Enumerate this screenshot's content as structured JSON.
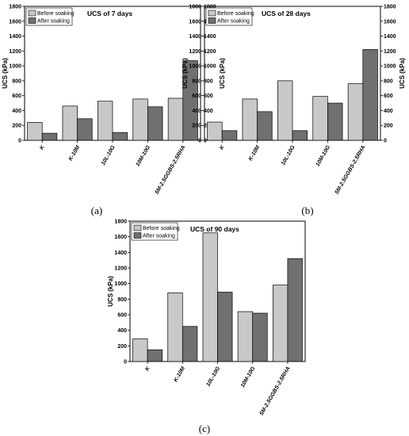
{
  "chart_data": [
    {
      "type": "bar",
      "panel_label": "(a)",
      "title": "UCS of 7 days",
      "ylabel": "UCS (kPa)",
      "ylim": [
        0,
        1800
      ],
      "yticks": [
        0,
        200,
        400,
        600,
        800,
        1000,
        1200,
        1400,
        1600,
        1800
      ],
      "secondary_y_axis": true,
      "legend_position": "top-left",
      "categories": [
        "K",
        "K-10M",
        "10L-10G",
        "10M-10G",
        "5M-2.5GGBS-2.5RHA"
      ],
      "series": [
        {
          "name": "Before soaking",
          "color": "#c8c8c8",
          "values": [
            240,
            460,
            525,
            555,
            565
          ]
        },
        {
          "name": "After soaking",
          "color": "#707070",
          "values": [
            95,
            290,
            105,
            450,
            1070
          ]
        }
      ]
    },
    {
      "type": "bar",
      "panel_label": "(b)",
      "title": "UCS of 28 days",
      "ylabel": "UCS (kPa)",
      "ylim": [
        0,
        1800
      ],
      "yticks": [
        0,
        200,
        400,
        600,
        800,
        1000,
        1200,
        1400,
        1600,
        1800
      ],
      "secondary_y_axis": true,
      "legend_position": "top-left",
      "categories": [
        "K",
        "K-10M",
        "10L-10G",
        "10M-10G",
        "5M-2.5GGBS-2.5RHA"
      ],
      "series": [
        {
          "name": "Before soaking",
          "color": "#c8c8c8",
          "values": [
            245,
            555,
            800,
            590,
            760
          ]
        },
        {
          "name": "After soaking",
          "color": "#707070",
          "values": [
            130,
            385,
            130,
            500,
            1220
          ]
        }
      ]
    },
    {
      "type": "bar",
      "panel_label": "(c)",
      "title": "UCS of 90 days",
      "ylabel": "UCS (kPa)",
      "ylim": [
        0,
        1800
      ],
      "yticks": [
        0,
        200,
        400,
        600,
        800,
        1000,
        1200,
        1400,
        1600,
        1800
      ],
      "secondary_y_axis": false,
      "legend_position": "top-left",
      "categories": [
        "K",
        "K-10M",
        "10L-10G",
        "10M-10G",
        "5M-2.5GGBS-2.5RHA"
      ],
      "series": [
        {
          "name": "Before soaking",
          "color": "#c8c8c8",
          "values": [
            290,
            880,
            1650,
            640,
            980
          ]
        },
        {
          "name": "After soaking",
          "color": "#707070",
          "values": [
            150,
            450,
            890,
            620,
            1320
          ]
        }
      ]
    }
  ]
}
